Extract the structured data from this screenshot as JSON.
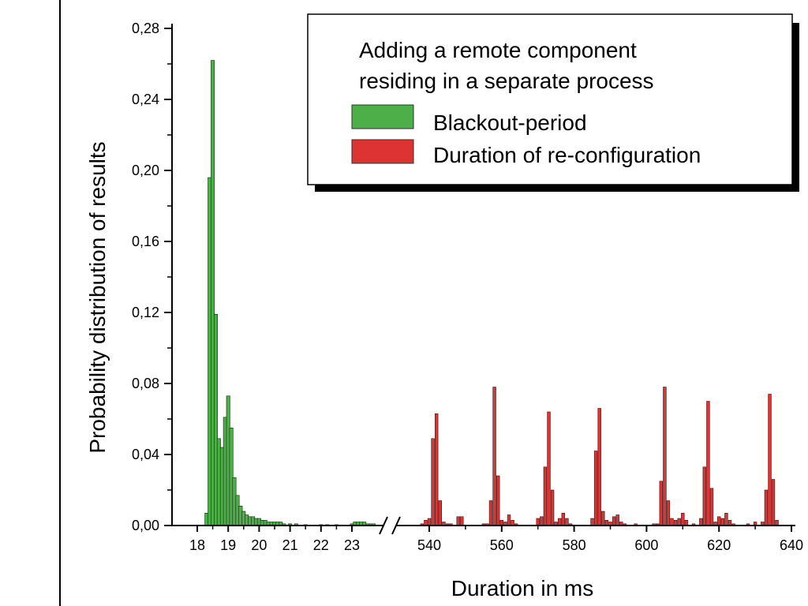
{
  "chart_data": {
    "type": "bar",
    "title": "",
    "xlabel": "Duration in ms",
    "ylabel": "Probability distribution of results",
    "ylim": [
      0,
      0.28
    ],
    "y_ticks": [
      "0,00",
      "0,04",
      "0,08",
      "0,12",
      "0,16",
      "0,20",
      "0,24",
      "0,28"
    ],
    "x_axis_break": true,
    "x_ticks_segment1": [
      "18",
      "19",
      "20",
      "21",
      "22",
      "23"
    ],
    "x_ticks_segment2": [
      "540",
      "560",
      "580",
      "600",
      "620",
      "640"
    ],
    "legend": {
      "title_line1": "Adding a remote component",
      "title_line2": "residing in a separate process",
      "entries": [
        {
          "label": "Blackout-period",
          "color": "#4caf47"
        },
        {
          "label": "Duration of re-configuration",
          "color": "#dd3333"
        }
      ]
    },
    "series": [
      {
        "name": "Blackout-period",
        "color": "#4caf47",
        "x": [
          18.3,
          18.4,
          18.5,
          18.6,
          18.7,
          18.8,
          18.9,
          19.0,
          19.1,
          19.2,
          19.3,
          19.4,
          19.5,
          19.6,
          19.7,
          19.8,
          19.9,
          20.0,
          20.1,
          20.2,
          20.3,
          20.4,
          20.5,
          20.6,
          20.7,
          20.8,
          21.0,
          21.2,
          21.5,
          22.0,
          22.2,
          22.5,
          23.0,
          23.1,
          23.2,
          23.3,
          23.4,
          23.5,
          23.6,
          23.7
        ],
        "y": [
          0.007,
          0.196,
          0.262,
          0.119,
          0.049,
          0.044,
          0.061,
          0.073,
          0.055,
          0.027,
          0.017,
          0.011,
          0.008,
          0.006,
          0.005,
          0.005,
          0.004,
          0.004,
          0.003,
          0.003,
          0.002,
          0.002,
          0.002,
          0.002,
          0.002,
          0.001,
          0.001,
          0.001,
          0.0005,
          0.0005,
          0.0005,
          0.0005,
          0.001,
          0.002,
          0.002,
          0.002,
          0.002,
          0.001,
          0.001,
          0.001
        ]
      },
      {
        "name": "Duration of re-configuration",
        "color": "#dd3333",
        "x": [
          538,
          539,
          540,
          541,
          542,
          543,
          544,
          545,
          546,
          548,
          549,
          555,
          556,
          557,
          558,
          559,
          560,
          561,
          562,
          563,
          564,
          570,
          571,
          572,
          573,
          574,
          575,
          576,
          577,
          578,
          579,
          585,
          586,
          587,
          588,
          589,
          590,
          591,
          592,
          593,
          594,
          597,
          602,
          603,
          604,
          605,
          606,
          607,
          608,
          609,
          610,
          611,
          613,
          615,
          616,
          617,
          618,
          619,
          620,
          621,
          622,
          623,
          624,
          628,
          630,
          632,
          633,
          634,
          635,
          636
        ],
        "y": [
          0.001,
          0.003,
          0.004,
          0.049,
          0.063,
          0.014,
          0.002,
          0.001,
          0.001,
          0.005,
          0.005,
          0.001,
          0.001,
          0.014,
          0.078,
          0.028,
          0.003,
          0.002,
          0.006,
          0.003,
          0.001,
          0.004,
          0.005,
          0.033,
          0.064,
          0.02,
          0.002,
          0.004,
          0.007,
          0.004,
          0.001,
          0.004,
          0.042,
          0.066,
          0.008,
          0.003,
          0.002,
          0.005,
          0.006,
          0.002,
          0.001,
          0.001,
          0.001,
          0.001,
          0.025,
          0.078,
          0.014,
          0.004,
          0.003,
          0.004,
          0.007,
          0.003,
          0.001,
          0.004,
          0.033,
          0.07,
          0.021,
          0.002,
          0.005,
          0.004,
          0.007,
          0.003,
          0.001,
          0.001,
          0.002,
          0.002,
          0.02,
          0.074,
          0.026,
          0.003
        ]
      }
    ]
  }
}
